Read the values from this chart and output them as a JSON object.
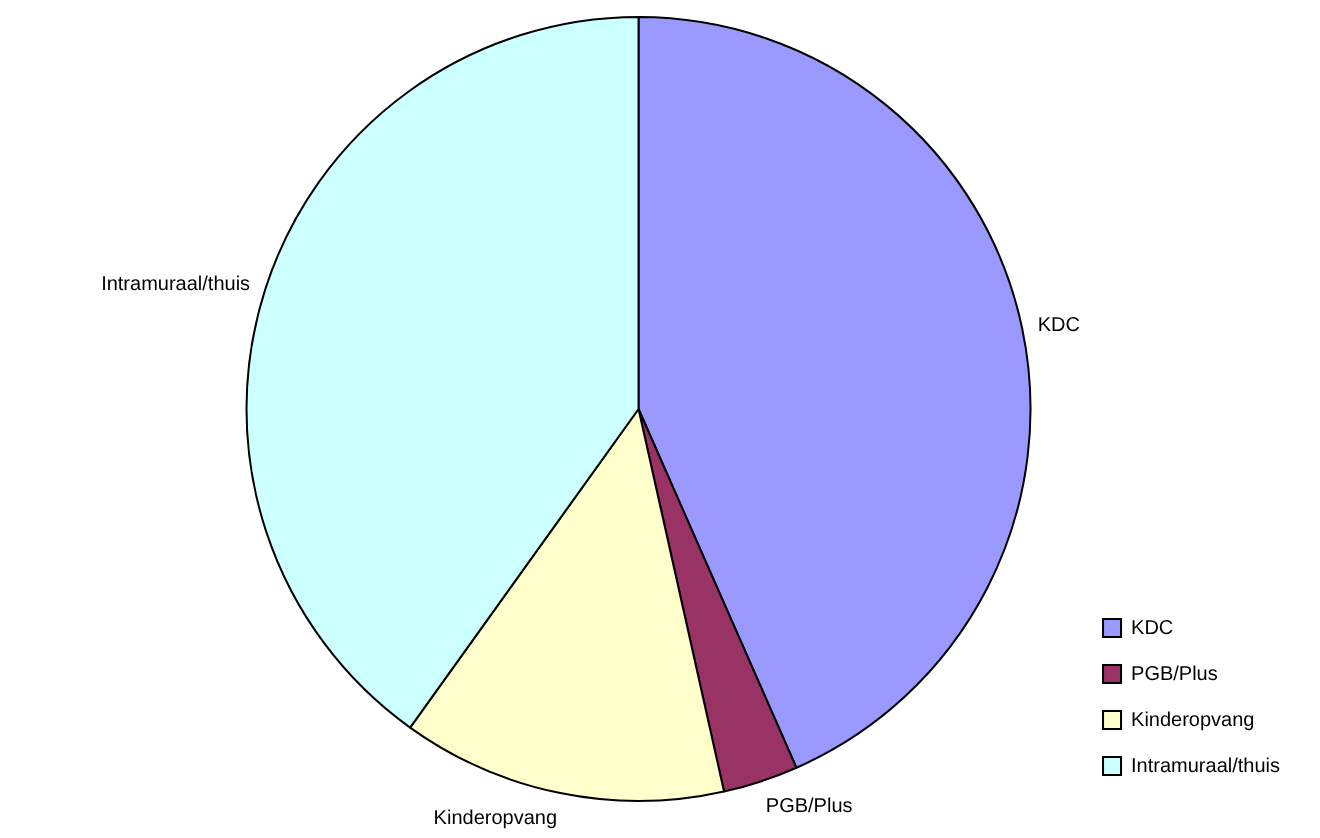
{
  "chart_data": {
    "type": "pie",
    "categories": [
      "KDC",
      "PGB/Plus",
      "Kinderopvang",
      "Intramuraal/thuis"
    ],
    "values": [
      43.4,
      3.1,
      13.4,
      40.1
    ],
    "colors": [
      "#9999ff",
      "#993366",
      "#ffffcc",
      "#ccffff"
    ],
    "legend": "bottom right"
  }
}
